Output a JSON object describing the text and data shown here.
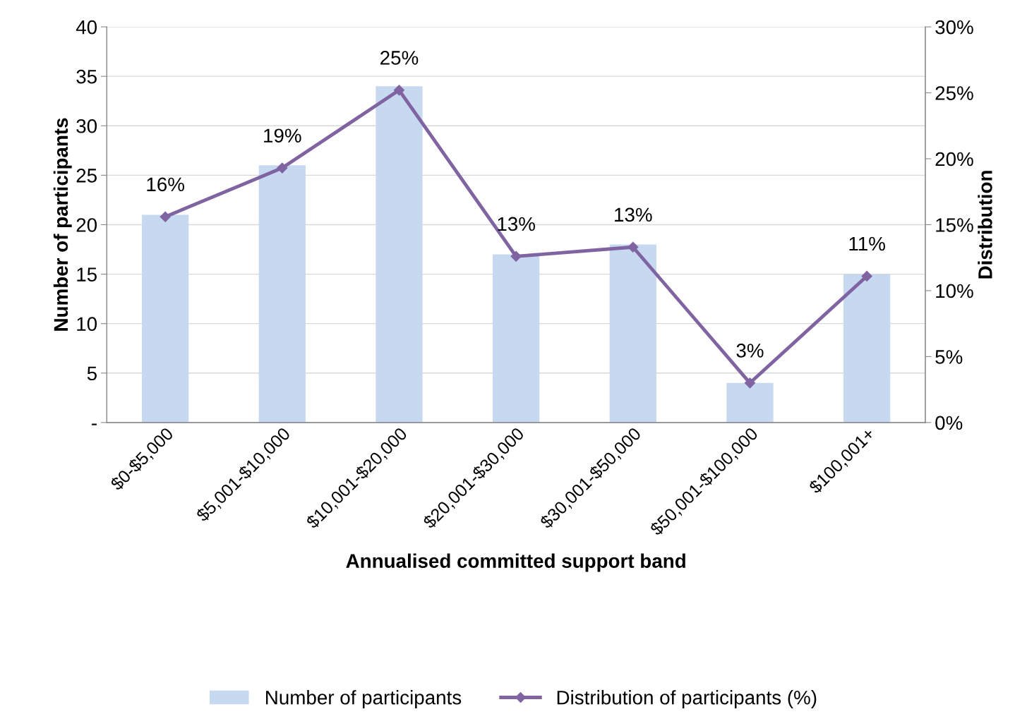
{
  "chart_data": {
    "type": "bar",
    "xlabel": "Annualised committed support band",
    "ylabel": "Number of participants",
    "y2label": "Distribution",
    "categories": [
      "$0-$5,000",
      "$5,001-$10,000",
      "$10,001-$20,000",
      "$20,001-$30,000",
      "$30,001-$50,000",
      "$50,001-$100,000",
      "$100,001+"
    ],
    "series": [
      {
        "name": "Number of participants",
        "color": "#c6d9f1",
        "values": [
          21,
          26,
          34,
          17,
          18,
          4,
          15
        ]
      },
      {
        "name": "Distribution of participants (%)",
        "type": "line",
        "axis": "y2",
        "color": "#8064a2",
        "marker": "diamond",
        "values": [
          15.6,
          19.3,
          25.2,
          12.6,
          13.3,
          3.0,
          11.1
        ],
        "value_labels": [
          "16%",
          "19%",
          "25%",
          "13%",
          "13%",
          "3%",
          "11%"
        ]
      }
    ],
    "ylim": [
      0,
      40
    ],
    "yticks": [
      {
        "value": 0,
        "label": "-"
      },
      5,
      10,
      15,
      20,
      25,
      30,
      35,
      40
    ],
    "y2lim": [
      0,
      30
    ],
    "y2ticks": [
      {
        "value": 0,
        "label": "0%"
      },
      {
        "value": 5,
        "label": "5%"
      },
      {
        "value": 10,
        "label": "10%"
      },
      {
        "value": 15,
        "label": "15%"
      },
      {
        "value": 20,
        "label": "20%"
      },
      {
        "value": 25,
        "label": "25%"
      },
      {
        "value": 30,
        "label": "30%"
      }
    ],
    "grid": "y",
    "legend": "bottom"
  }
}
